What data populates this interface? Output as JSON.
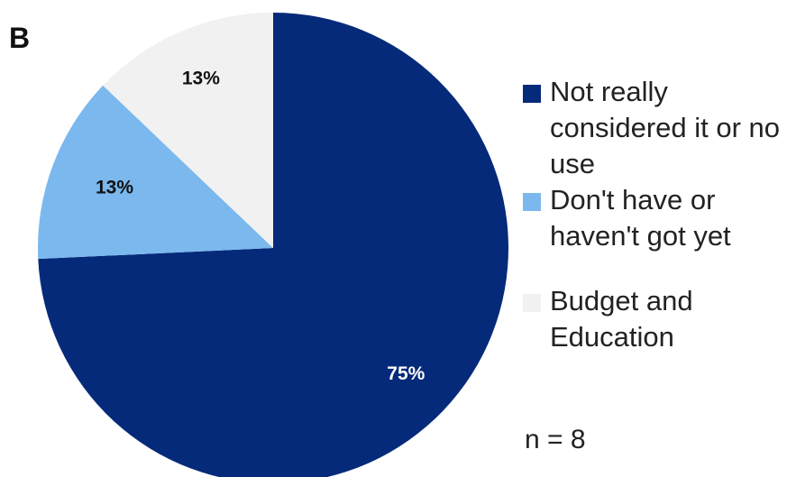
{
  "panel_label": "B",
  "chart_data": {
    "type": "pie",
    "slices": [
      {
        "label": "Not really considered it or no use",
        "value": 75,
        "display": "75%",
        "color": "#062a7a",
        "label_color": "#ffffff"
      },
      {
        "label": "Don't have or haven't got yet",
        "value": 13,
        "display": "13%",
        "color": "#7ab8ee",
        "label_color": "#111111"
      },
      {
        "label": "Budget and Education",
        "value": 13,
        "display": "13%",
        "color": "#f1f1f1",
        "label_color": "#111111"
      }
    ],
    "start_angle_deg": 0,
    "direction": "clockwise"
  },
  "legend": {
    "items": [
      {
        "label": "Not really considered it or no use",
        "color": "#062a7a"
      },
      {
        "label": "Don't have or haven't got yet",
        "color": "#7ab8ee"
      },
      {
        "label": "Budget and Education",
        "color": "#f1f1f1"
      }
    ]
  },
  "sample_size": "n = 8"
}
